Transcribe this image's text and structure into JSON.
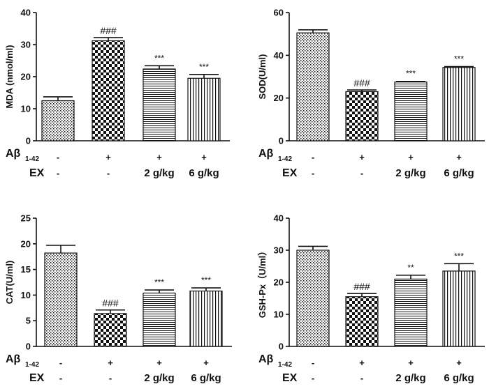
{
  "colors": {
    "ink": "#111111",
    "background": "#ffffff"
  },
  "conditions": {
    "abeta_label": "Aβ",
    "abeta_subscript": "1-42",
    "ex_label": "EX",
    "abeta_values": [
      "-",
      "+",
      "+",
      "+"
    ],
    "ex_values": [
      "-",
      "-",
      "2 g/kg",
      "6 g/kg"
    ]
  },
  "chart_data": [
    {
      "type": "bar",
      "ylabel": "MDA (nmol/ml)",
      "ylim": [
        0,
        40
      ],
      "yticks": [
        0,
        10,
        20,
        30,
        40
      ],
      "categories": [
        "Control",
        "Aβ1-42",
        "Aβ1-42 + EX 2 g/kg",
        "Aβ1-42 + EX 6 g/kg"
      ],
      "values": [
        12.5,
        31.2,
        22.4,
        19.5
      ],
      "errors": [
        1.2,
        1.0,
        1.0,
        1.2
      ],
      "patterns": [
        "grid",
        "checker",
        "hlines",
        "vlines"
      ],
      "annotations": [
        "",
        "###",
        "***",
        "***"
      ]
    },
    {
      "type": "bar",
      "ylabel": "SOD(U/ml)",
      "ylim": [
        0,
        60
      ],
      "yticks": [
        0,
        20,
        40,
        60
      ],
      "categories": [
        "Control",
        "Aβ1-42",
        "Aβ1-42 + EX 2 g/kg",
        "Aβ1-42 + EX 6 g/kg"
      ],
      "values": [
        50.5,
        23.0,
        27.5,
        34.3
      ],
      "errors": [
        1.4,
        0.8,
        0.3,
        0.4
      ],
      "patterns": [
        "grid",
        "checker",
        "hlines",
        "vlines"
      ],
      "annotations": [
        "",
        "###",
        "***",
        "***"
      ]
    },
    {
      "type": "bar",
      "ylabel": "CAT(U/ml)",
      "ylim": [
        0,
        25
      ],
      "yticks": [
        0,
        5,
        10,
        15,
        20,
        25
      ],
      "categories": [
        "Control",
        "Aβ1-42",
        "Aβ1-42 + EX 2 g/kg",
        "Aβ1-42 + EX 6 g/kg"
      ],
      "values": [
        18.2,
        6.4,
        10.4,
        10.8
      ],
      "errors": [
        1.5,
        0.7,
        0.6,
        0.6
      ],
      "patterns": [
        "grid",
        "checker",
        "hlines",
        "vlines"
      ],
      "annotations": [
        "",
        "###",
        "***",
        "***"
      ]
    },
    {
      "type": "bar",
      "ylabel": "GSH-Px（U/ml）",
      "ylim": [
        0,
        40
      ],
      "yticks": [
        0,
        10,
        20,
        30,
        40
      ],
      "categories": [
        "Control",
        "Aβ1-42",
        "Aβ1-42 + EX 2 g/kg",
        "Aβ1-42 + EX 6 g/kg"
      ],
      "values": [
        30.0,
        15.5,
        21.0,
        23.5
      ],
      "errors": [
        1.2,
        1.0,
        1.2,
        2.3
      ],
      "patterns": [
        "grid",
        "checker",
        "hlines",
        "vlines"
      ],
      "annotations": [
        "",
        "###",
        "**",
        "***"
      ]
    }
  ]
}
